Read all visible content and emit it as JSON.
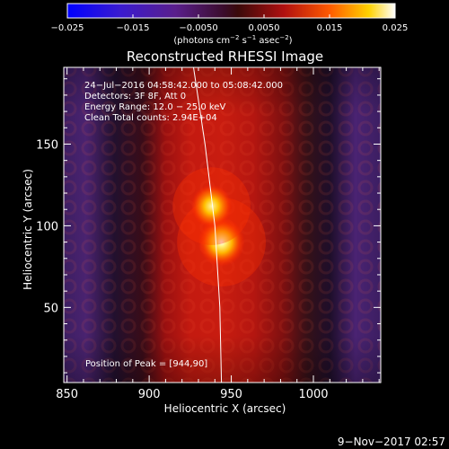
{
  "colorbar": {
    "ticks": [
      {
        "value": -0.025,
        "label": "−0.025"
      },
      {
        "value": -0.015,
        "label": "−0.015"
      },
      {
        "value": -0.005,
        "label": "−0.0050"
      },
      {
        "value": 0.005,
        "label": "0.0050"
      },
      {
        "value": 0.015,
        "label": "0.015"
      },
      {
        "value": 0.025,
        "label": "0.025"
      }
    ],
    "range": [
      -0.025,
      0.025
    ],
    "units_main": "(photons cm",
    "units_sup1": "−2",
    "units_mid1": " s",
    "units_sup2": "−1",
    "units_mid2": " asec",
    "units_sup3": "−2",
    "units_end": ")"
  },
  "title": "Reconstructed RHESSI Image",
  "annotations": {
    "time_range": "24−Jul−2016 04:58:42.000 to 05:08:42.000",
    "detectors": "Detectors: 3F 8F, Att 0",
    "energy_range": "Energy Range: 12.0 − 25.0 keV",
    "clean": "Clean    Total counts: 2.94E+04",
    "peak": "Position of Peak = [944,90]"
  },
  "footer_date": "9−Nov−2017 02:57",
  "chart_data": {
    "type": "heatmap",
    "title": "Reconstructed RHESSI Image",
    "xlabel": "Heliocentric X (arcsec)",
    "ylabel": "Heliocentric Y (arcsec)",
    "xlim": [
      848,
      1041
    ],
    "ylim": [
      4,
      197
    ],
    "x_ticks": [
      850,
      900,
      950,
      1000
    ],
    "y_ticks": [
      50,
      100,
      150
    ],
    "colormap": "hot (black-blue-purple-red-yellow-white)",
    "sources": [
      {
        "x": 944,
        "y": 90,
        "relative_intensity": 1.0
      },
      {
        "x": 938,
        "y": 112,
        "relative_intensity": 0.8
      }
    ],
    "limb_curve": [
      [
        927,
        197
      ],
      [
        934,
        150
      ],
      [
        940,
        100
      ],
      [
        943,
        50
      ],
      [
        944,
        4
      ]
    ]
  }
}
